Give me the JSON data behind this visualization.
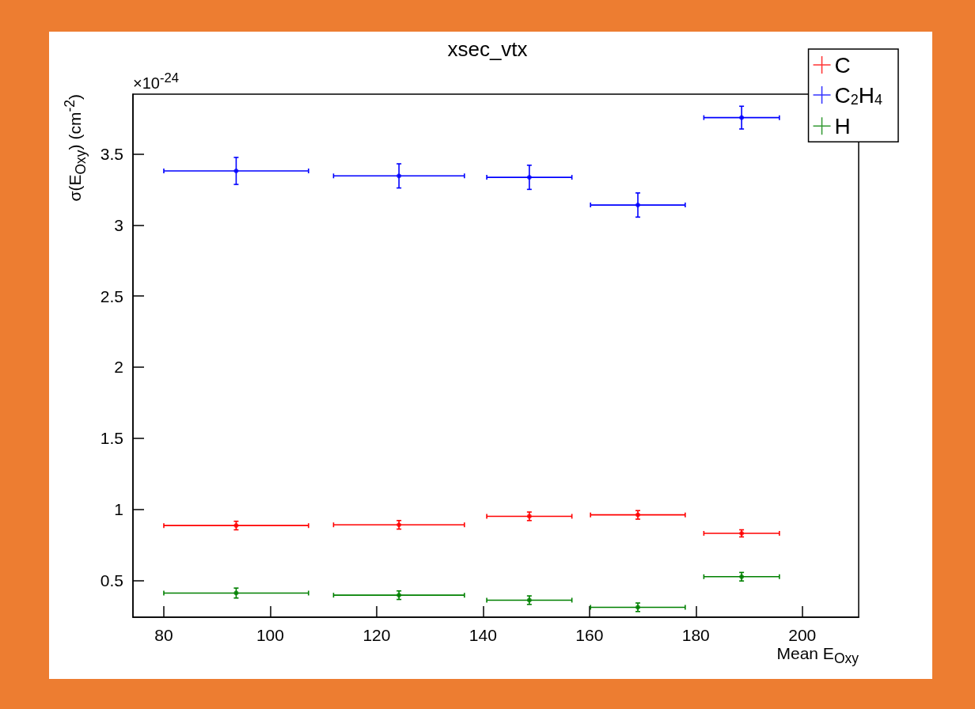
{
  "chart_data": {
    "type": "scatter",
    "title": "xsec_vtx",
    "xlabel": "Mean E$_{Oxy}$",
    "ylabel": "σ(E$_{Oxy}$) (cm$^{-2}$)",
    "annotations": [
      "×10$^{-24}$"
    ],
    "x": [
      93.6,
      124.2,
      148.7,
      169.1,
      188.6
    ],
    "series": [
      {
        "name": "C",
        "color": "#ff0000",
        "values": [
          0.885,
          0.89,
          0.95,
          0.96,
          0.83
        ],
        "errors": [
          0.03,
          0.03,
          0.03,
          0.03,
          0.025
        ],
        "xerrors": [
          13.6,
          12.3,
          8,
          8.9,
          7.1
        ]
      },
      {
        "name": "C$_{2}$H$_{4}$",
        "color": "#0000ff",
        "values": [
          3.38,
          3.345,
          3.335,
          3.14,
          3.755
        ],
        "errors": [
          0.095,
          0.085,
          0.085,
          0.085,
          0.08
        ],
        "xerrors": [
          13.6,
          12.3,
          8,
          8.9,
          7.1
        ]
      },
      {
        "name": "H",
        "color": "#008000",
        "values": [
          0.41,
          0.395,
          0.36,
          0.31,
          0.525
        ],
        "errors": [
          0.035,
          0.03,
          0.03,
          0.03,
          0.03
        ],
        "xerrors": [
          13.6,
          12.3,
          8,
          8.9,
          7.1
        ]
      }
    ],
    "xlim": [
      74.2,
      210.6
    ],
    "xticks": [
      80,
      100,
      120,
      140,
      160,
      180,
      200
    ],
    "ylim": [
      0.24,
      3.92
    ],
    "yticks": [
      0.5,
      1,
      1.5,
      2,
      2.5,
      3,
      3.5
    ],
    "legend": "top right",
    "marker": "circle"
  }
}
